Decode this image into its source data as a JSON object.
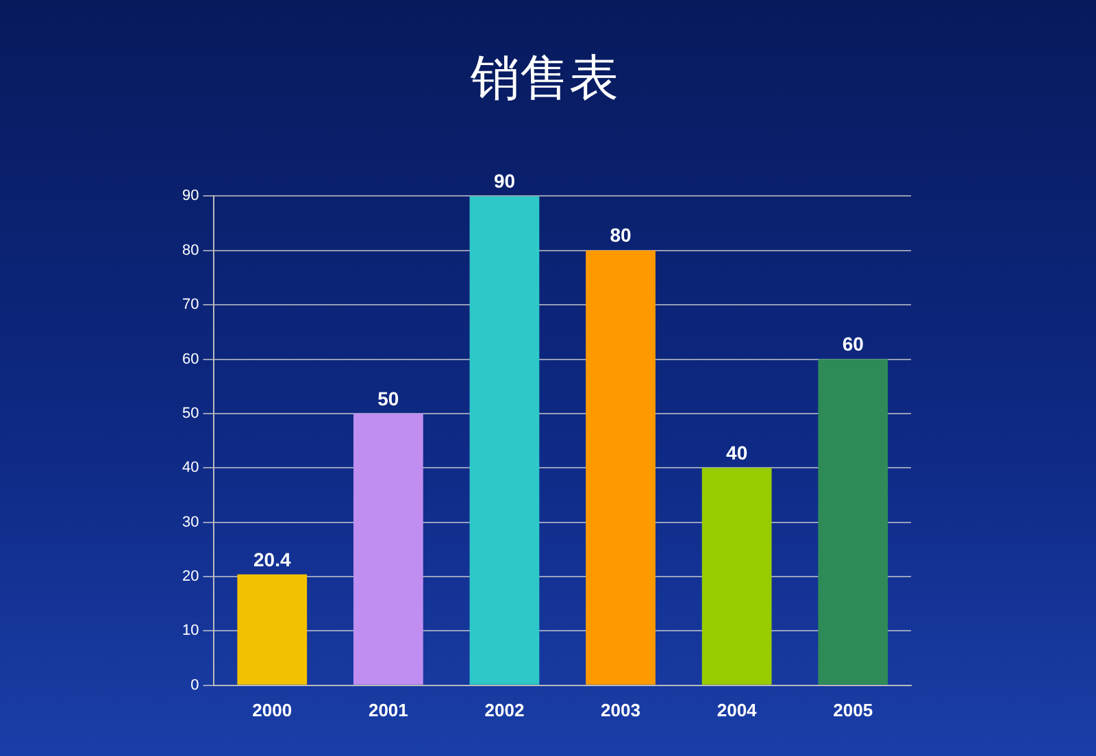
{
  "chart_data": {
    "type": "bar",
    "title": "销售表",
    "categories": [
      "2000",
      "2001",
      "2002",
      "2003",
      "2004",
      "2005"
    ],
    "values": [
      20.4,
      50,
      90,
      80,
      40,
      60
    ],
    "colors": [
      "#f2c200",
      "#c08ef0",
      "#2ec8c8",
      "#ff9900",
      "#99cc00",
      "#2e8b57"
    ],
    "ylim": [
      0,
      90
    ],
    "yticks": [
      0,
      10,
      20,
      30,
      40,
      50,
      60,
      70,
      80,
      90
    ],
    "grid": "y",
    "legend": false,
    "data_labels": true
  }
}
